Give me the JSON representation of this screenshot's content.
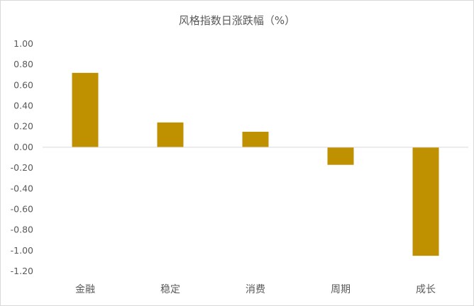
{
  "chart_data": {
    "type": "bar",
    "title": "风格指数日涨跌幅（%）",
    "xlabel": "",
    "ylabel": "",
    "categories": [
      "金融",
      "稳定",
      "消费",
      "周期",
      "成长"
    ],
    "values": [
      0.72,
      0.24,
      0.15,
      -0.17,
      -1.05
    ],
    "ylim": [
      -1.2,
      1.0
    ],
    "yticks": [
      "1.00",
      "0.80",
      "0.60",
      "0.40",
      "0.20",
      "0.00",
      "-0.20",
      "-0.40",
      "-0.60",
      "-0.80",
      "-1.00",
      "-1.20"
    ],
    "bar_color": "#BF9000",
    "axis_color": "#D9D9D9",
    "text_color": "#595959",
    "grid": false,
    "legend": "none"
  }
}
